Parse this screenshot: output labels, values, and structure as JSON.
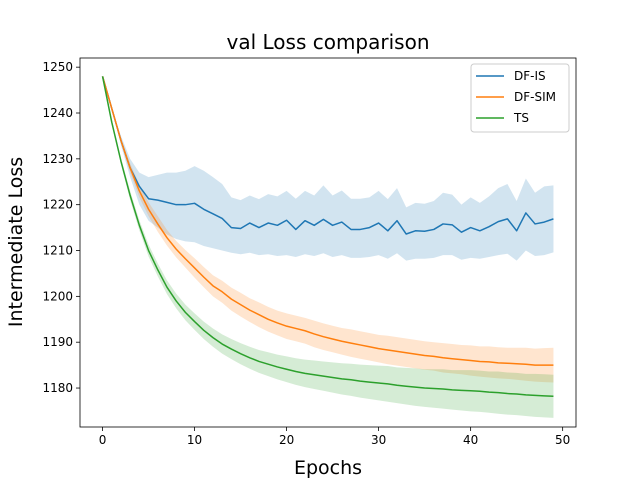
{
  "chart_data": {
    "type": "line",
    "title": "val Loss comparison",
    "xlabel": "Epochs",
    "ylabel": "Intermediate Loss",
    "xlim": [
      -2.45,
      51.45
    ],
    "ylim": [
      1171.5,
      1252
    ],
    "xticks": [
      0,
      10,
      20,
      30,
      40,
      50
    ],
    "yticks": [
      1180,
      1190,
      1200,
      1210,
      1220,
      1230,
      1240,
      1250
    ],
    "grid": false,
    "legend_position": "top-right",
    "x": [
      0,
      1,
      2,
      3,
      4,
      5,
      6,
      7,
      8,
      9,
      10,
      11,
      12,
      13,
      14,
      15,
      16,
      17,
      18,
      19,
      20,
      21,
      22,
      23,
      24,
      25,
      26,
      27,
      28,
      29,
      30,
      31,
      32,
      33,
      34,
      35,
      36,
      37,
      38,
      39,
      40,
      41,
      42,
      43,
      44,
      45,
      46,
      47,
      48,
      49
    ],
    "series": [
      {
        "name": "DF-IS",
        "color": "#1f77b4",
        "values": [
          1248,
          1241,
          1234,
          1228,
          1224,
          1221.3,
          1221,
          1220.5,
          1220,
          1220,
          1220.3,
          1219,
          1218,
          1217,
          1215,
          1214.8,
          1216,
          1215,
          1216,
          1215.5,
          1216.6,
          1214.6,
          1216.5,
          1215.5,
          1216.8,
          1215.5,
          1216.2,
          1214.6,
          1214.6,
          1215,
          1216,
          1214.3,
          1216.5,
          1213.6,
          1214.3,
          1214.2,
          1214.6,
          1215.8,
          1215.6,
          1214,
          1215,
          1214.3,
          1215.2,
          1216.3,
          1216.9,
          1214.3,
          1218.2,
          1215.8,
          1216.2,
          1216.9
        ],
        "lower": [
          1248,
          1241,
          1233,
          1226,
          1220,
          1216.5,
          1215,
          1213.5,
          1212.5,
          1212,
          1211.8,
          1211,
          1210.5,
          1210,
          1209.5,
          1209.2,
          1209.5,
          1209,
          1209.2,
          1208.8,
          1209,
          1208.6,
          1209.2,
          1208.8,
          1209.4,
          1208.6,
          1209,
          1208.4,
          1208.4,
          1208.6,
          1209,
          1208.2,
          1209.4,
          1207.8,
          1208.2,
          1208.2,
          1208.4,
          1209,
          1209,
          1208,
          1208.4,
          1208.2,
          1208.6,
          1209,
          1209.3,
          1207.8,
          1210,
          1208.8,
          1209,
          1209.6
        ],
        "upper": [
          1248,
          1241,
          1235,
          1230,
          1227,
          1226,
          1226.5,
          1227,
          1227,
          1227.4,
          1228.4,
          1227.4,
          1226,
          1224.5,
          1221.6,
          1221,
          1222,
          1221.2,
          1222.3,
          1221.8,
          1223,
          1221.3,
          1223,
          1222,
          1224.2,
          1222,
          1223.1,
          1221.3,
          1221.3,
          1221.6,
          1223,
          1221.2,
          1223.6,
          1219.4,
          1220.4,
          1220.2,
          1220.8,
          1222.6,
          1222.2,
          1220,
          1221.6,
          1220.4,
          1221.8,
          1223.6,
          1224.5,
          1220.8,
          1225.7,
          1222.6,
          1224,
          1224.2
        ]
      },
      {
        "name": "DF-SIM",
        "color": "#ff7f0e",
        "values": [
          1248,
          1241,
          1234,
          1228,
          1223,
          1219,
          1215.8,
          1212.8,
          1210.3,
          1208.2,
          1206.2,
          1204.2,
          1202.3,
          1201,
          1199.4,
          1198.2,
          1197,
          1196,
          1195,
          1194.2,
          1193.5,
          1193,
          1192.5,
          1191.8,
          1191.2,
          1190.7,
          1190.2,
          1189.8,
          1189.4,
          1189,
          1188.6,
          1188.3,
          1188,
          1187.7,
          1187.4,
          1187.1,
          1186.9,
          1186.6,
          1186.4,
          1186.2,
          1186,
          1185.8,
          1185.7,
          1185.5,
          1185.4,
          1185.3,
          1185.2,
          1185,
          1185,
          1185
        ],
        "lower": [
          1248,
          1241,
          1233.5,
          1227,
          1221.6,
          1217.5,
          1214.1,
          1211.1,
          1208.5,
          1206.3,
          1204.1,
          1202,
          1200,
          1198.6,
          1196.9,
          1195.6,
          1194.4,
          1193.3,
          1192.3,
          1191.5,
          1190.7,
          1190.2,
          1189.7,
          1188.9,
          1188.3,
          1187.8,
          1187.3,
          1186.8,
          1186.4,
          1186,
          1185.6,
          1185.2,
          1184.9,
          1184.6,
          1184.3,
          1184,
          1183.8,
          1183.4,
          1183.2,
          1183,
          1182.7,
          1182.5,
          1182.3,
          1182.1,
          1182,
          1181.8,
          1181.6,
          1181.4,
          1181.3,
          1181.2
        ],
        "upper": [
          1248,
          1241,
          1234.5,
          1229,
          1224.4,
          1220.5,
          1217.5,
          1214.5,
          1212.1,
          1210.1,
          1208.3,
          1206.4,
          1204.6,
          1203.4,
          1201.9,
          1200.8,
          1199.6,
          1198.7,
          1197.7,
          1196.9,
          1196.3,
          1195.8,
          1195.3,
          1194.7,
          1194.1,
          1193.6,
          1193.1,
          1192.8,
          1192.4,
          1192,
          1191.6,
          1191.4,
          1191.1,
          1190.8,
          1190.5,
          1190.2,
          1190,
          1189.8,
          1189.6,
          1189.4,
          1189.3,
          1189.1,
          1189.1,
          1188.9,
          1188.8,
          1188.8,
          1188.8,
          1188.6,
          1188.7,
          1188.8
        ]
      },
      {
        "name": "TS",
        "color": "#2ca02c",
        "values": [
          1248,
          1238,
          1229.5,
          1222,
          1215.5,
          1210,
          1205.8,
          1202,
          1199,
          1196.5,
          1194.5,
          1192.6,
          1191,
          1189.6,
          1188.5,
          1187.5,
          1186.6,
          1185.8,
          1185.2,
          1184.6,
          1184.1,
          1183.6,
          1183.2,
          1182.9,
          1182.6,
          1182.3,
          1182,
          1181.8,
          1181.5,
          1181.3,
          1181.1,
          1180.9,
          1180.6,
          1180.4,
          1180.2,
          1180,
          1179.9,
          1179.8,
          1179.6,
          1179.5,
          1179.4,
          1179.3,
          1179.1,
          1179,
          1178.8,
          1178.7,
          1178.5,
          1178.4,
          1178.3,
          1178.2
        ],
        "lower": [
          1248,
          1237.5,
          1228.8,
          1221,
          1214.4,
          1208.7,
          1204.4,
          1200.5,
          1197.4,
          1194.8,
          1192.7,
          1190.7,
          1189,
          1187.5,
          1186.3,
          1185.2,
          1184.2,
          1183.3,
          1182.6,
          1181.9,
          1181.3,
          1180.7,
          1180.2,
          1179.8,
          1179.4,
          1179,
          1178.6,
          1178.3,
          1177.9,
          1177.6,
          1177.3,
          1177,
          1176.7,
          1176.4,
          1176.1,
          1175.9,
          1175.7,
          1175.5,
          1175.3,
          1175.1,
          1174.9,
          1174.8,
          1174.6,
          1174.4,
          1174.2,
          1174.1,
          1173.9,
          1173.7,
          1173.6,
          1173.5
        ],
        "upper": [
          1248,
          1238.5,
          1230.2,
          1223,
          1216.6,
          1211.3,
          1207.2,
          1203.5,
          1200.6,
          1198.2,
          1196.3,
          1194.5,
          1193,
          1191.7,
          1190.7,
          1189.8,
          1189,
          1188.3,
          1187.8,
          1187.3,
          1186.9,
          1186.5,
          1186.2,
          1186,
          1185.8,
          1185.6,
          1185.4,
          1185.3,
          1185.1,
          1185,
          1184.9,
          1184.8,
          1184.5,
          1184.4,
          1184.3,
          1184.1,
          1184.1,
          1184.1,
          1183.9,
          1183.9,
          1183.9,
          1183.8,
          1183.6,
          1183.6,
          1183.4,
          1183.3,
          1183.1,
          1183.1,
          1183,
          1182.9
        ]
      }
    ]
  }
}
